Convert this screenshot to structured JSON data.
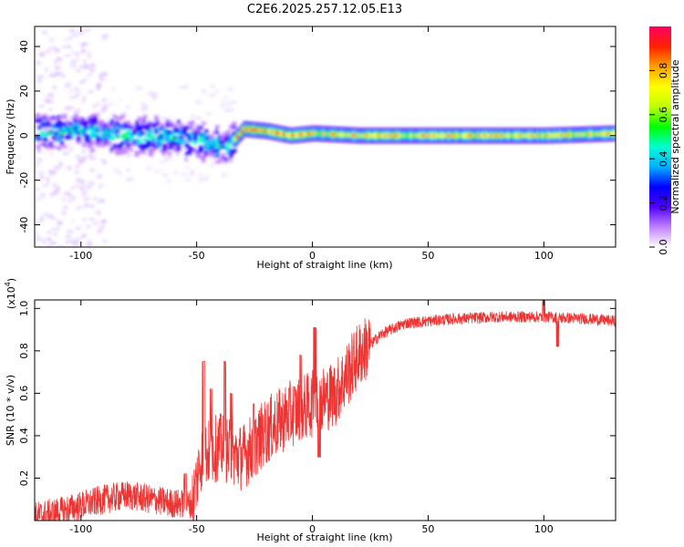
{
  "title": "C2E6.2025.257.12.05.E13",
  "chart_data": [
    {
      "type": "heatmap",
      "name": "spectrogram",
      "xlabel": "Height of straight line (km)",
      "ylabel": "Frequency (Hz)",
      "xlim": [
        -120,
        131
      ],
      "ylim": [
        -50,
        49
      ],
      "xticks": [
        -100,
        -50,
        0,
        50,
        100
      ],
      "xtick_labels": [
        "-100",
        "-50",
        "0",
        "50",
        "100"
      ],
      "yticks": [
        40,
        20,
        0,
        -20,
        -40
      ],
      "ytick_labels": [
        "40",
        "20",
        "0",
        "-20",
        "-40"
      ],
      "colorbar": {
        "label": "Normalized spectral amplitude",
        "range": [
          0,
          1
        ],
        "ticks": [
          0.0,
          0.2,
          0.4,
          0.6,
          0.8
        ],
        "tick_labels": [
          "0.0",
          "0.2",
          "0.4",
          "0.6",
          "0.8"
        ],
        "colors": [
          "#ffffff",
          "#c080ff",
          "#5000ff",
          "#0000ff",
          "#00b0ff",
          "#00ffd0",
          "#00ff00",
          "#c0ff00",
          "#ffff00",
          "#ffa000",
          "#ff2000",
          "#ff0060"
        ]
      },
      "band_description": "Noisy broadband signal from -120 to -35 km spread about 0 Hz (±8 Hz); narrow band near 0 Hz from -35 km to 131 km",
      "band_center": [
        {
          "x": -120,
          "y": 2
        },
        {
          "x": -100,
          "y": 2
        },
        {
          "x": -80,
          "y": 0
        },
        {
          "x": -60,
          "y": -1
        },
        {
          "x": -45,
          "y": -3
        },
        {
          "x": -38,
          "y": -6
        },
        {
          "x": -30,
          "y": 3
        },
        {
          "x": -20,
          "y": 2
        },
        {
          "x": -10,
          "y": 0
        },
        {
          "x": 0,
          "y": 1
        },
        {
          "x": 20,
          "y": 0
        },
        {
          "x": 50,
          "y": 0
        },
        {
          "x": 100,
          "y": 0
        },
        {
          "x": 131,
          "y": 1
        }
      ]
    },
    {
      "type": "line",
      "name": "snr",
      "xlabel": "Height of straight line (km)",
      "ylabel": "SNR (10 * v/v)",
      "yscale_label": "(x10",
      "yscale_exponent": "4",
      "xlim": [
        -120,
        131
      ],
      "ylim": [
        0,
        1.04
      ],
      "xticks": [
        -100,
        -50,
        0,
        50,
        100
      ],
      "xtick_labels": [
        "-100",
        "-50",
        "0",
        "50",
        "100"
      ],
      "yticks": [
        1.0,
        0.8,
        0.6,
        0.4,
        0.2
      ],
      "ytick_labels": [
        "1.0",
        "0.8",
        "0.6",
        "0.4",
        "0.2"
      ],
      "color": "#ee3333",
      "series": [
        {
          "name": "SNR",
          "trend": [
            {
              "x": -120,
              "y": 0.02
            },
            {
              "x": -110,
              "y": 0.04
            },
            {
              "x": -100,
              "y": 0.07
            },
            {
              "x": -90,
              "y": 0.1
            },
            {
              "x": -80,
              "y": 0.12
            },
            {
              "x": -70,
              "y": 0.1
            },
            {
              "x": -60,
              "y": 0.08
            },
            {
              "x": -52,
              "y": 0.08
            },
            {
              "x": -48,
              "y": 0.3
            },
            {
              "x": -40,
              "y": 0.35
            },
            {
              "x": -33,
              "y": 0.3
            },
            {
              "x": -30,
              "y": 0.3
            },
            {
              "x": -20,
              "y": 0.42
            },
            {
              "x": -10,
              "y": 0.5
            },
            {
              "x": 0,
              "y": 0.55
            },
            {
              "x": 10,
              "y": 0.6
            },
            {
              "x": 20,
              "y": 0.78
            },
            {
              "x": 30,
              "y": 0.88
            },
            {
              "x": 40,
              "y": 0.93
            },
            {
              "x": 60,
              "y": 0.95
            },
            {
              "x": 80,
              "y": 0.96
            },
            {
              "x": 100,
              "y": 0.96
            },
            {
              "x": 120,
              "y": 0.95
            },
            {
              "x": 131,
              "y": 0.94
            }
          ],
          "peaks": [
            {
              "x": -55,
              "y": 0.22
            },
            {
              "x": -47,
              "y": 0.75
            },
            {
              "x": -44,
              "y": 0.62
            },
            {
              "x": -38,
              "y": 0.75
            },
            {
              "x": -35,
              "y": 0.6
            },
            {
              "x": -25,
              "y": 0.55
            },
            {
              "x": -5,
              "y": 0.78
            },
            {
              "x": 1,
              "y": 0.91
            },
            {
              "x": 3,
              "y": 0.3
            },
            {
              "x": 100,
              "y": 1.04
            },
            {
              "x": 106,
              "y": 0.82
            }
          ]
        }
      ]
    }
  ]
}
